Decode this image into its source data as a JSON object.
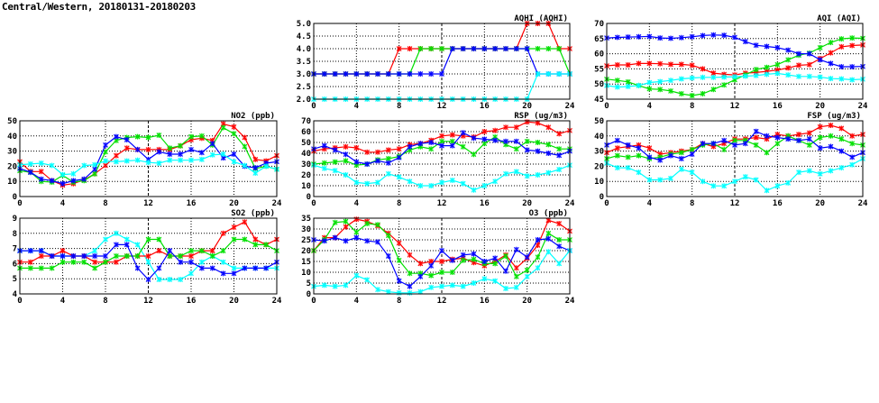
{
  "title": "Central/Western, 20180131-20180203",
  "chart_data": [
    {
      "type": "line",
      "title": "AQHI (AQHI)",
      "xlim": [
        0,
        24
      ],
      "ylim": [
        2,
        5
      ],
      "ystep": 0.5,
      "ydecimals": 1,
      "xticks": [
        0,
        4,
        8,
        12,
        16,
        20,
        24
      ],
      "grid": true,
      "series": [
        {
          "color": "#ff0000",
          "values": [
            3,
            3,
            3,
            3,
            3,
            3,
            3,
            3,
            4,
            4,
            4,
            4,
            4,
            4,
            4,
            4,
            4,
            4,
            4,
            4,
            5,
            5,
            5,
            4,
            4
          ]
        },
        {
          "color": "#00e000",
          "values": [
            3,
            3,
            3,
            3,
            3,
            3,
            3,
            3,
            3,
            3,
            4,
            4,
            4,
            4,
            4,
            4,
            4,
            4,
            4,
            4,
            4,
            4,
            4,
            4,
            3
          ]
        },
        {
          "color": "#0000ff",
          "values": [
            3,
            3,
            3,
            3,
            3,
            3,
            3,
            3,
            3,
            3,
            3,
            3,
            3,
            4,
            4,
            4,
            4,
            4,
            4,
            4,
            4,
            3,
            3,
            3,
            3
          ]
        },
        {
          "color": "#00ffff",
          "values": [
            2,
            2,
            2,
            2,
            2,
            2,
            2,
            2,
            2,
            2,
            2,
            2,
            2,
            2,
            2,
            2,
            2,
            2,
            2,
            2,
            2,
            3,
            3,
            3,
            3
          ]
        }
      ]
    },
    {
      "type": "line",
      "title": "AQI (AQI)",
      "xlim": [
        0,
        24
      ],
      "ylim": [
        45,
        70
      ],
      "ystep": 5,
      "ydecimals": 0,
      "xticks": [
        0,
        4,
        8,
        12,
        16,
        20,
        24
      ],
      "grid": true,
      "series": [
        {
          "color": "#ff0000",
          "values": [
            56,
            56.3,
            56.3,
            56.8,
            56.8,
            56.7,
            56.5,
            56.5,
            56.2,
            55,
            53.6,
            53.2,
            53,
            53.6,
            53.8,
            54.2,
            54.6,
            55.3,
            56.2,
            56.4,
            58.4,
            60.3,
            62.3,
            62.7,
            62.9
          ]
        },
        {
          "color": "#00e000",
          "values": [
            51.6,
            51.2,
            50.7,
            49.5,
            48.4,
            48.2,
            47.7,
            46.8,
            46.2,
            46.8,
            48.2,
            49.7,
            51.4,
            53,
            54.8,
            55.5,
            56.4,
            58,
            59.5,
            60.2,
            62,
            63.7,
            64.9,
            65.2,
            65.1
          ]
        },
        {
          "color": "#0000ff",
          "values": [
            65.2,
            65.4,
            65.5,
            65.6,
            65.7,
            65.2,
            65.1,
            65.3,
            65.6,
            66,
            66.2,
            66.1,
            65.4,
            64,
            62.8,
            62.4,
            62,
            61.2,
            60,
            60,
            58,
            56.8,
            55.7,
            55.7,
            55.8
          ]
        },
        {
          "color": "#00ffff",
          "values": [
            49.5,
            49,
            49.2,
            49.5,
            50.5,
            50.8,
            51.2,
            51.7,
            52,
            52.2,
            52.2,
            52.3,
            52.4,
            52.6,
            52.8,
            53.2,
            53.5,
            53,
            52.5,
            52.5,
            52.3,
            51.8,
            51.7,
            51.4,
            51.6
          ]
        }
      ]
    },
    {
      "type": "line",
      "title": "NO2 (ppb)",
      "xlim": [
        0,
        24
      ],
      "ylim": [
        0,
        50
      ],
      "ystep": 10,
      "ydecimals": 0,
      "xticks": [
        0,
        4,
        8,
        12,
        16,
        20,
        24
      ],
      "grid": true,
      "series": [
        {
          "color": "#ff0000",
          "values": [
            23,
            16.5,
            16.5,
            10.5,
            7.5,
            8.5,
            11,
            15,
            20.5,
            27,
            32,
            31,
            31,
            31,
            31,
            33.5,
            37.5,
            38.5,
            37,
            48,
            46,
            39,
            24.5,
            23.5,
            27
          ]
        },
        {
          "color": "#00e000",
          "values": [
            17,
            16,
            10,
            9.5,
            14,
            9.5,
            10.5,
            15,
            29.5,
            37,
            39,
            39.5,
            39,
            40.5,
            32,
            33.5,
            39.5,
            40,
            34,
            45.5,
            41.5,
            33,
            18.5,
            20,
            18
          ]
        },
        {
          "color": "#0000ff",
          "values": [
            18.5,
            16,
            11.5,
            10.5,
            8.5,
            10.5,
            11.5,
            18,
            34,
            39.5,
            37.5,
            31,
            24.5,
            29.5,
            28,
            28,
            31,
            29,
            35,
            25.5,
            28,
            20,
            19,
            22,
            23
          ]
        },
        {
          "color": "#00ffff",
          "values": [
            21,
            21.5,
            22,
            20.5,
            14.5,
            15,
            20.5,
            21,
            23.5,
            23,
            23.5,
            24,
            22.5,
            22,
            24,
            24,
            24,
            24.5,
            27.5,
            28,
            23,
            20.5,
            15.5,
            20,
            18
          ]
        }
      ]
    },
    {
      "type": "line",
      "title": "RSP (ug/m3)",
      "xlim": [
        0,
        24
      ],
      "ylim": [
        0,
        70
      ],
      "ystep": 10,
      "ydecimals": 0,
      "xticks": [
        0,
        4,
        8,
        12,
        16,
        20,
        24
      ],
      "grid": true,
      "series": [
        {
          "color": "#ff0000",
          "values": [
            42,
            44,
            45,
            46,
            45,
            41,
            41,
            43,
            44,
            48,
            49,
            52,
            56,
            57,
            56,
            55,
            60,
            61,
            64,
            64,
            69,
            68,
            64,
            58,
            61
          ]
        },
        {
          "color": "#00e000",
          "values": [
            30,
            31,
            32,
            33,
            29,
            30,
            34,
            35,
            37,
            43,
            46,
            44,
            51,
            51,
            46,
            39,
            49,
            55,
            48,
            44,
            51,
            50,
            48,
            44,
            44
          ]
        },
        {
          "color": "#0000ff",
          "values": [
            44,
            47,
            43,
            39,
            32,
            30,
            33,
            31,
            36,
            46,
            49,
            50,
            47,
            47,
            59,
            54,
            53,
            52,
            51,
            51,
            43,
            42,
            40,
            38,
            42
          ]
        },
        {
          "color": "#00ffff",
          "values": [
            29,
            26,
            24,
            20,
            13,
            12,
            13,
            21,
            18,
            14,
            10,
            10,
            13,
            15,
            12,
            6,
            10,
            14,
            21,
            23,
            19,
            20,
            22,
            25,
            29
          ]
        }
      ]
    },
    {
      "type": "line",
      "title": "FSP (ug/m3)",
      "xlim": [
        0,
        24
      ],
      "ylim": [
        0,
        50
      ],
      "ystep": 10,
      "ydecimals": 0,
      "xticks": [
        0,
        4,
        8,
        12,
        16,
        20,
        24
      ],
      "grid": true,
      "series": [
        {
          "color": "#ff0000",
          "values": [
            29,
            32,
            33,
            34,
            32,
            28,
            29,
            30,
            31,
            35,
            33,
            35,
            38,
            38,
            39,
            38,
            41,
            40,
            41,
            42,
            46,
            47,
            45,
            40,
            41
          ]
        },
        {
          "color": "#00e000",
          "values": [
            25,
            27,
            26,
            27,
            25,
            26,
            28,
            29,
            31,
            34,
            35,
            31,
            37,
            37,
            34,
            29,
            35,
            40,
            37,
            34,
            39,
            40,
            38,
            35,
            34
          ]
        },
        {
          "color": "#0000ff",
          "values": [
            34,
            37,
            34,
            32,
            26,
            24,
            27,
            25,
            28,
            35,
            35,
            37,
            34,
            35,
            43,
            40,
            39,
            38,
            37,
            38,
            32,
            33,
            30,
            26,
            29
          ]
        },
        {
          "color": "#00ffff",
          "values": [
            22,
            19,
            19,
            16,
            11,
            11,
            12,
            18,
            16,
            10,
            7,
            7,
            10,
            13,
            11,
            4,
            7,
            9,
            16,
            17,
            15,
            17,
            19,
            21,
            25
          ]
        }
      ]
    },
    {
      "type": "line",
      "title": "SO2 (ppb)",
      "xlim": [
        0,
        24
      ],
      "ylim": [
        4,
        9
      ],
      "ystep": 1,
      "ydecimals": 0,
      "xticks": [
        0,
        4,
        8,
        12,
        16,
        20,
        24
      ],
      "grid": true,
      "series": [
        {
          "color": "#00ffff",
          "values": [
            6.85,
            6.85,
            6.85,
            6.5,
            6.5,
            6.5,
            6.5,
            6.85,
            7.6,
            8,
            7.6,
            7.25,
            6.1,
            4.95,
            4.95,
            4.95,
            5.35,
            6.1,
            6.5,
            6.1,
            5.7,
            5.7,
            5.7,
            5.7,
            5.7
          ]
        },
        {
          "color": "#ff0000",
          "values": [
            6.1,
            6.1,
            6.5,
            6.5,
            6.85,
            6.5,
            6.5,
            6.1,
            6.1,
            6.1,
            6.5,
            6.5,
            6.5,
            6.85,
            6.5,
            6.5,
            6.5,
            6.85,
            6.85,
            8,
            8.4,
            8.75,
            7.6,
            7.25,
            7.6
          ]
        },
        {
          "color": "#00e000",
          "values": [
            5.7,
            5.7,
            5.7,
            5.7,
            6.1,
            6.1,
            6.1,
            5.7,
            6.1,
            6.5,
            6.5,
            6.5,
            7.6,
            7.6,
            6.5,
            6.5,
            6.85,
            6.85,
            6.5,
            6.85,
            7.6,
            7.6,
            7.25,
            7.25,
            6.85
          ]
        },
        {
          "color": "#0000ff",
          "values": [
            6.85,
            6.85,
            6.85,
            6.5,
            6.5,
            6.5,
            6.5,
            6.5,
            6.5,
            7.25,
            7.25,
            5.7,
            4.95,
            5.7,
            6.85,
            6.1,
            6.1,
            5.7,
            5.7,
            5.35,
            5.35,
            5.7,
            5.7,
            5.7,
            6.1
          ]
        }
      ]
    },
    {
      "type": "line",
      "title": "O3 (ppb)",
      "xlim": [
        0,
        24
      ],
      "ylim": [
        0,
        35
      ],
      "ystep": 5,
      "ydecimals": 0,
      "xticks": [
        0,
        4,
        8,
        12,
        16,
        20,
        24
      ],
      "grid": true,
      "series": [
        {
          "color": "#ff0000",
          "values": [
            20,
            26,
            26,
            31,
            34.5,
            33.5,
            31.5,
            28,
            23.5,
            18,
            14,
            15,
            15,
            16,
            16.5,
            14.5,
            13,
            15,
            18,
            12,
            16.5,
            22.5,
            34,
            32.5,
            29
          ]
        },
        {
          "color": "#00e000",
          "values": [
            20,
            25,
            33,
            33.5,
            28.5,
            32.5,
            32,
            27,
            15.5,
            9.5,
            9.5,
            8.5,
            10,
            10,
            15.5,
            16,
            14,
            14,
            17.5,
            8,
            11,
            17,
            28,
            25,
            25
          ]
        },
        {
          "color": "#0000ff",
          "values": [
            25,
            24.5,
            26,
            24.5,
            26,
            24.5,
            24,
            17.5,
            6,
            3.5,
            8,
            13,
            20,
            15.5,
            18,
            18.5,
            15,
            16.5,
            10.5,
            20.5,
            17,
            25,
            25.5,
            22,
            20
          ]
        },
        {
          "color": "#00ffff",
          "values": [
            3.5,
            4,
            3.5,
            4,
            8.5,
            6.5,
            2,
            1,
            0.5,
            0.5,
            1,
            3,
            3.5,
            4,
            3.5,
            5,
            7,
            6,
            2.5,
            3,
            8,
            12,
            19.5,
            14,
            20
          ]
        }
      ]
    }
  ]
}
